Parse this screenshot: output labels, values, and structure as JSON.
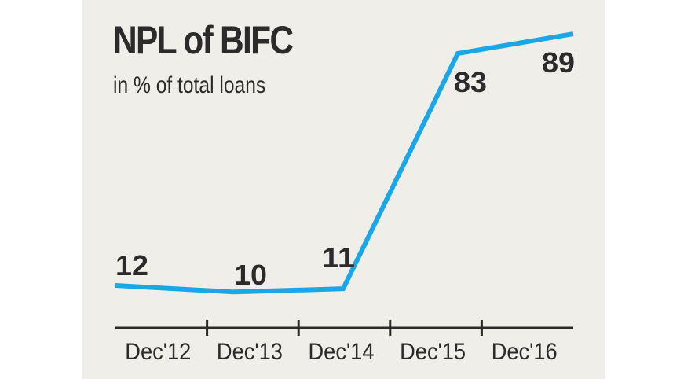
{
  "chart_data": {
    "type": "line",
    "title": "NPL of BIFC",
    "subtitle": "in % of total loans",
    "categories": [
      "Dec'12",
      "Dec'13",
      "Dec'14",
      "Dec'15",
      "Dec'16"
    ],
    "values": [
      12,
      10,
      11,
      83,
      89
    ],
    "data_labels": [
      "12",
      "10",
      "11",
      "83",
      "89"
    ],
    "grid": false,
    "colors": {
      "line": "#1aa7e8",
      "background": "#efeee8",
      "text": "#2b2b2b"
    }
  }
}
